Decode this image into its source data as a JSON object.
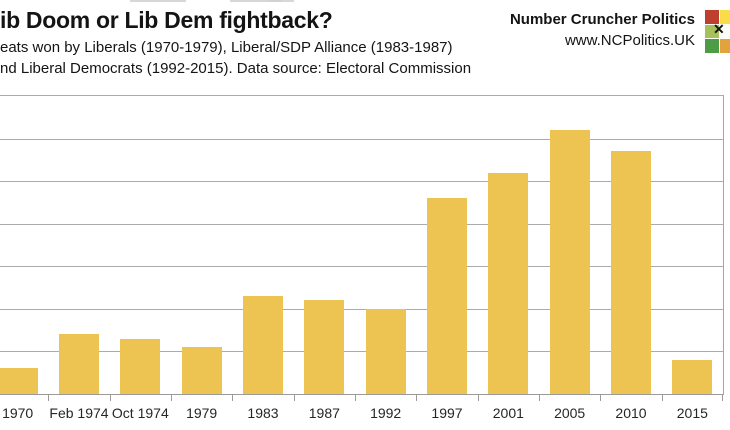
{
  "page": {
    "title": "ib Doom or Lib Dem fightback?",
    "subtitle_line1": "eats won by Liberals (1970-1979), Liberal/SDP Alliance (1983-1987)",
    "subtitle_line2": "nd Liberal Democrats (1992-2015). Data source: Electoral Commission"
  },
  "brand": {
    "name": "Number Cruncher Politics",
    "website": "www.NCPolitics.UK",
    "logo": {
      "x_mark": "✕",
      "cell_colors": [
        [
          "#bf3f2e",
          "#f8dc4a"
        ],
        [
          "#a6c05a",
          "#fdfdf5"
        ],
        [
          "#4c9b45",
          "#e2a33f"
        ]
      ]
    }
  },
  "chart_data": {
    "type": "bar",
    "title": "ib Doom or Lib Dem fightback?",
    "categories": [
      "1970",
      "Feb 1974",
      "Oct 1974",
      "1979",
      "1983",
      "1987",
      "1992",
      "1997",
      "2001",
      "2005",
      "2010",
      "2015"
    ],
    "values": [
      6,
      14,
      13,
      11,
      23,
      22,
      20,
      46,
      52,
      62,
      57,
      8
    ],
    "xlabel": "",
    "ylabel": "",
    "ylim": [
      0,
      70
    ],
    "gridline_step": 10,
    "grid": "horizontal",
    "legend": "none",
    "y_axis_labels_visible": false,
    "bar_color": "#edc451",
    "gridline_color": "#ababab",
    "axis_color": "#9b9b9b"
  }
}
